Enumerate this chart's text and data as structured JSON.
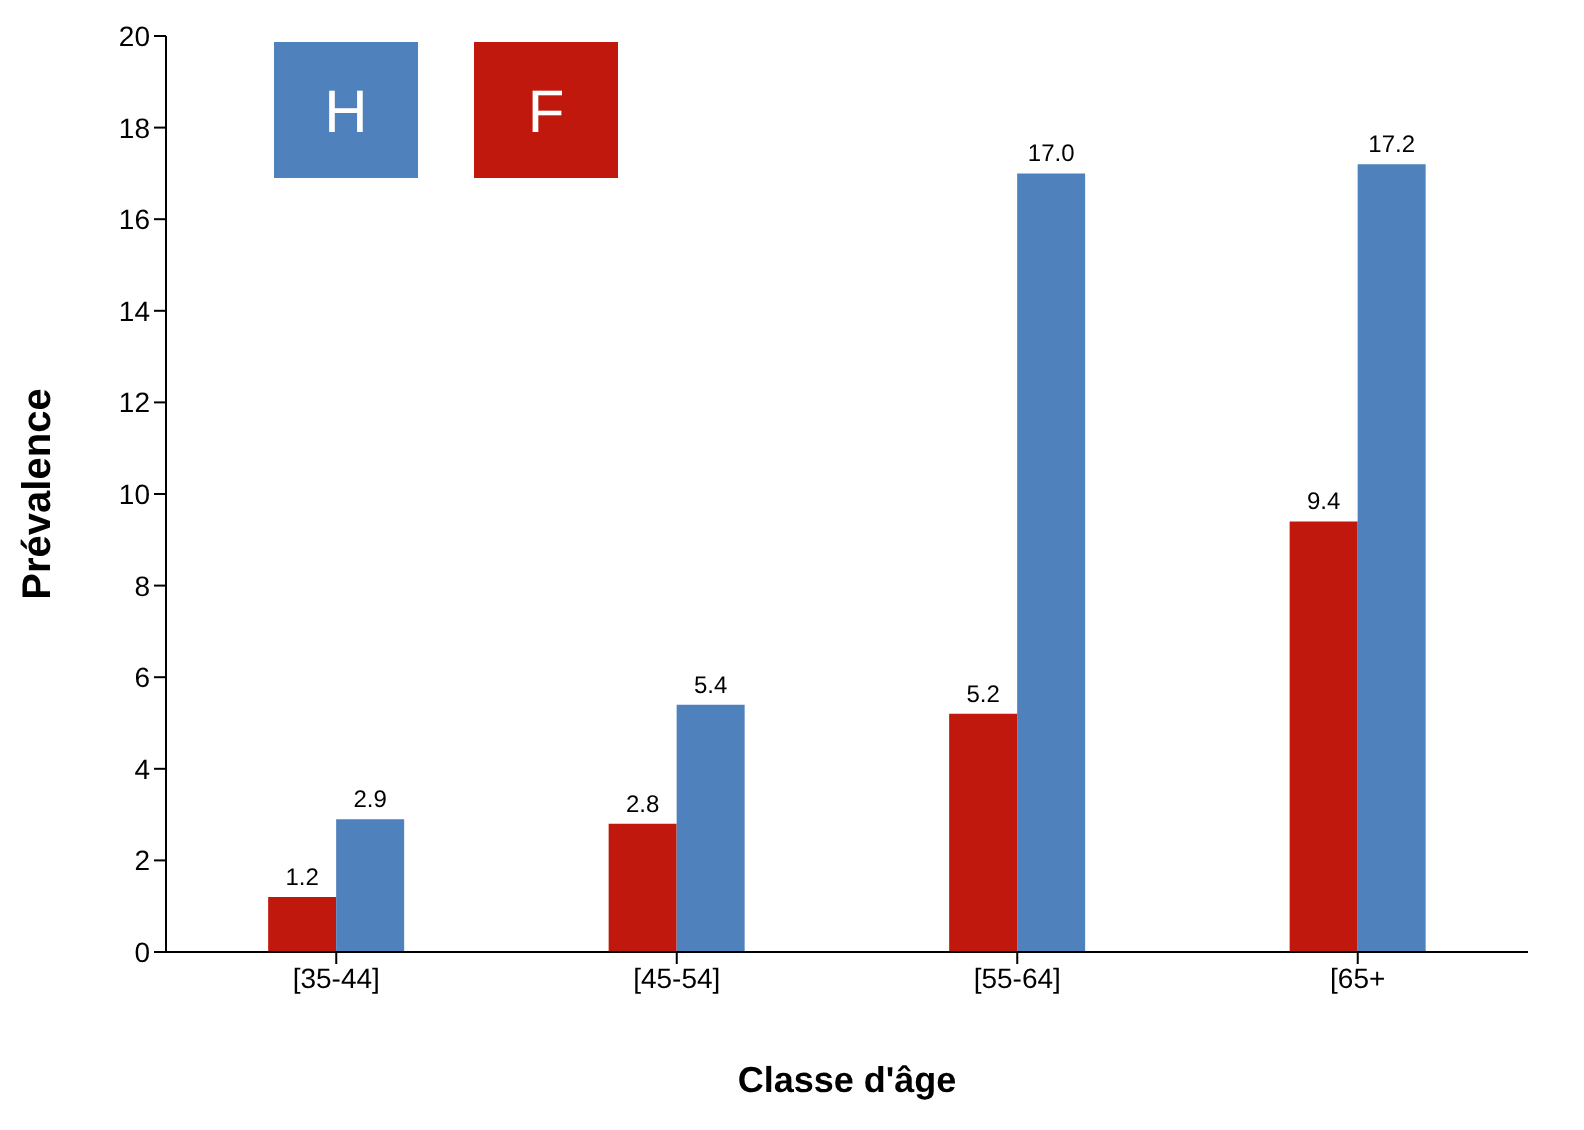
{
  "chart_data": {
    "type": "bar",
    "xlabel": "Classe d'âge",
    "ylabel": "Prévalence",
    "categories": [
      "[35-44]",
      "[45-54]",
      "[55-64]",
      "[65+"
    ],
    "series": [
      {
        "name": "F",
        "color": "#c0180c",
        "values": [
          1.2,
          2.8,
          5.2,
          9.4
        ],
        "value_labels": [
          "1.2",
          "2.8",
          "5.2",
          "9.4"
        ]
      },
      {
        "name": "H",
        "color": "#4f81bd",
        "values": [
          2.9,
          5.4,
          17.0,
          17.2
        ],
        "value_labels": [
          "2.9",
          "5.4",
          "17.0",
          "17.2"
        ]
      }
    ],
    "ylim": [
      0,
      20
    ],
    "yticks": [
      0,
      2,
      4,
      6,
      8,
      10,
      12,
      14,
      16,
      18,
      20
    ],
    "grid": false,
    "legend": "top left"
  }
}
